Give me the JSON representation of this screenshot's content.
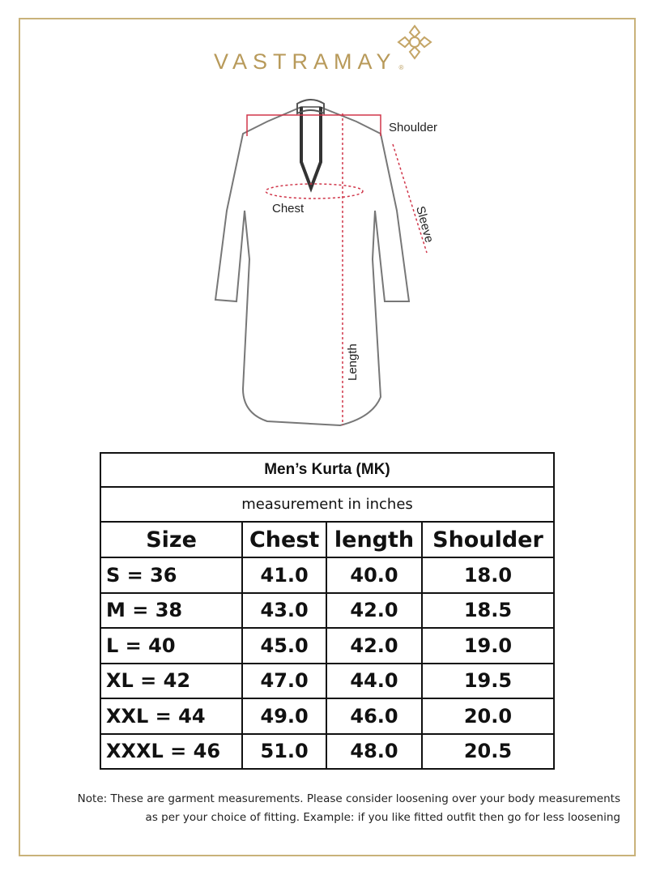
{
  "brand": {
    "name": "VASTRAMAY",
    "registered": "®",
    "color": "#b89a5a"
  },
  "diagram": {
    "labels": {
      "shoulder": "Shoulder",
      "chest": "Chest",
      "sleeve": "Sleeve",
      "length": "Length"
    },
    "measure_line_color": "#d0364a"
  },
  "table": {
    "title": "Men’s Kurta (MK)",
    "subtitle": "measurement in inches",
    "headers": [
      "Size",
      "Chest",
      "length",
      "Shoulder"
    ],
    "rows": [
      [
        "S = 36",
        "41.0",
        "40.0",
        "18.0"
      ],
      [
        "M = 38",
        "43.0",
        "42.0",
        "18.5"
      ],
      [
        "L = 40",
        "45.0",
        "42.0",
        "19.0"
      ],
      [
        "XL = 42",
        "47.0",
        "44.0",
        "19.5"
      ],
      [
        "XXL = 44",
        "49.0",
        "46.0",
        "20.0"
      ],
      [
        "XXXL = 46",
        "51.0",
        "48.0",
        "20.5"
      ]
    ]
  },
  "note": {
    "line1": "Note: These are garment measurements. Please consider loosening over your body measurements",
    "line2": "as per your choice of fitting. Example: if you like fitted outfit then go for less loosening"
  }
}
